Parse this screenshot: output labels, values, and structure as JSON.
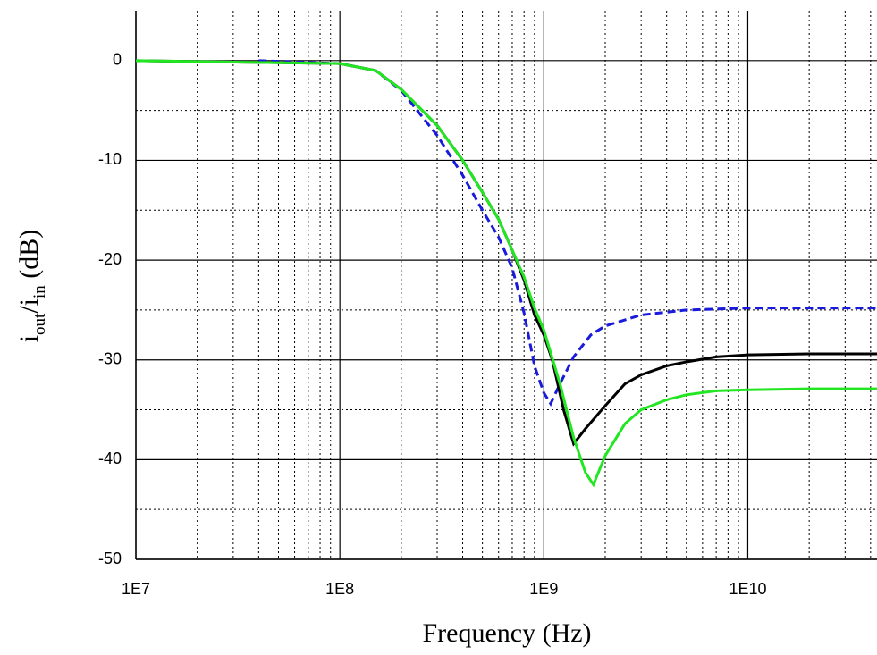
{
  "chart_data": {
    "type": "line",
    "xlabel": "Frequency (Hz)",
    "ylabel": [
      "i",
      "out",
      "/i",
      "in",
      " (dB)"
    ],
    "xscale": "log",
    "xlim": [
      10000000,
      43000000000
    ],
    "ylim": [
      -50,
      5
    ],
    "xticks": [
      {
        "value": 10000000,
        "label": "1E7"
      },
      {
        "value": 100000000,
        "label": "1E8"
      },
      {
        "value": 1000000000,
        "label": "1E9"
      },
      {
        "value": 10000000000,
        "label": "1E10"
      }
    ],
    "yticks": [
      0,
      -10,
      -20,
      -30,
      -40,
      -50
    ],
    "xminor": [
      20000000,
      30000000,
      40000000,
      50000000,
      60000000,
      70000000,
      80000000,
      90000000,
      200000000,
      300000000,
      400000000,
      500000000,
      600000000,
      700000000,
      800000000,
      900000000,
      2000000000,
      3000000000,
      4000000000,
      5000000000,
      6000000000,
      7000000000,
      8000000000,
      9000000000,
      20000000000,
      30000000000,
      40000000000
    ],
    "yminor": [
      -5,
      -15,
      -25,
      -35,
      -45
    ],
    "grid": true,
    "series": [
      {
        "color": "#1a1adc",
        "dash": true,
        "x": [
          40000000,
          100000000,
          150000000,
          200000000,
          300000000,
          400000000,
          500000000,
          600000000,
          700000000,
          800000000,
          900000000,
          1000000000,
          1080000000,
          1200000000,
          1400000000,
          1700000000,
          2000000000,
          3000000000,
          5000000000,
          10000000000,
          43000000000
        ],
        "values": [
          0,
          -0.3,
          -1,
          -3,
          -7.5,
          -11.5,
          -15,
          -17.7,
          -20.8,
          -25.3,
          -30.6,
          -33.3,
          -34.4,
          -32.4,
          -29.7,
          -27.5,
          -26.6,
          -25.5,
          -25,
          -24.8,
          -24.8
        ]
      },
      {
        "color": "#000000",
        "dash": false,
        "x": [
          10000000,
          100000000,
          150000000,
          200000000,
          300000000,
          400000000,
          500000000,
          600000000,
          700000000,
          800000000,
          900000000,
          1000000000,
          1100000000,
          1250000000,
          1400000000,
          1600000000,
          2000000000,
          2500000000,
          3000000000,
          4000000000,
          5000000000,
          7000000000,
          10000000000,
          20000000000,
          43000000000
        ],
        "values": [
          0,
          -0.3,
          -1,
          -2.9,
          -6.5,
          -10,
          -13.2,
          -15.9,
          -19,
          -22,
          -25.5,
          -27.5,
          -30,
          -35,
          -38.4,
          -36.9,
          -34.6,
          -32.4,
          -31.5,
          -30.6,
          -30.2,
          -29.7,
          -29.5,
          -29.4,
          -29.4
        ]
      },
      {
        "color": "#22e622",
        "dash": false,
        "x": [
          10000000,
          100000000,
          150000000,
          200000000,
          300000000,
          400000000,
          500000000,
          600000000,
          700000000,
          800000000,
          900000000,
          1000000000,
          1200000000,
          1400000000,
          1600000000,
          1750000000,
          2000000000,
          2500000000,
          3000000000,
          4000000000,
          5000000000,
          7000000000,
          10000000000,
          20000000000,
          43000000000
        ],
        "values": [
          0,
          -0.3,
          -1,
          -2.9,
          -6.5,
          -10,
          -13.2,
          -15.9,
          -19,
          -21.7,
          -24.8,
          -27,
          -32.4,
          -37.8,
          -41.3,
          -42.5,
          -39.6,
          -36.4,
          -35,
          -34,
          -33.5,
          -33.1,
          -33,
          -32.9,
          -32.9
        ]
      }
    ]
  }
}
